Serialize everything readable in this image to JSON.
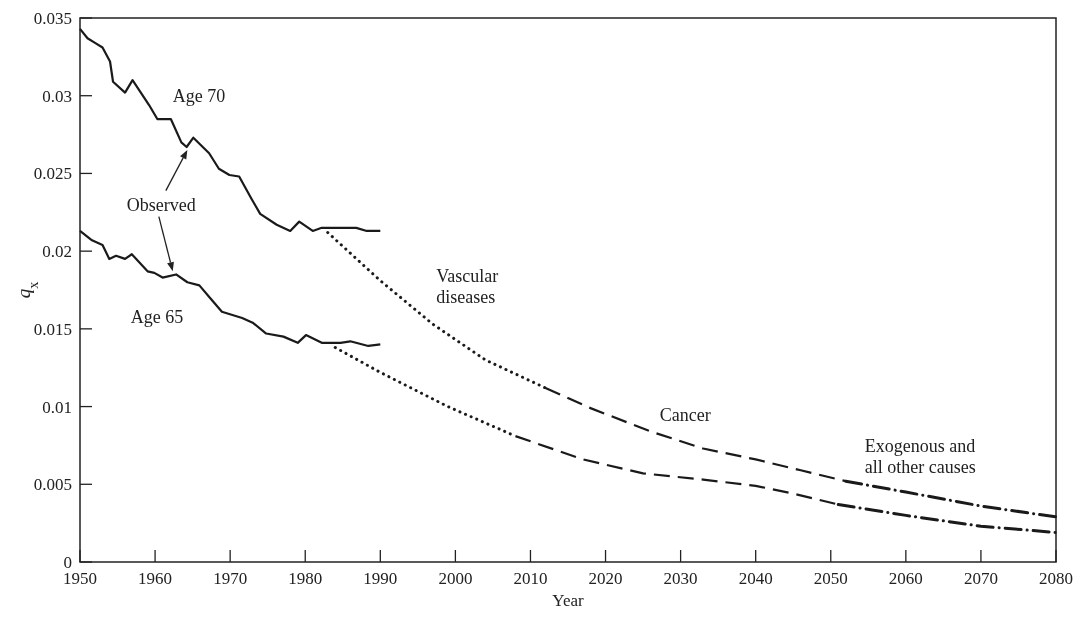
{
  "chart_data": {
    "type": "line",
    "xlabel": "Year",
    "ylabel": "q$_{x}$",
    "xlim": [
      1950,
      2080
    ],
    "xticks": [
      1950,
      1960,
      1970,
      1980,
      1990,
      2000,
      2010,
      2020,
      2030,
      2040,
      2050,
      2060,
      2070,
      2080
    ],
    "ylim": [
      0,
      0.035
    ],
    "yticks": [
      0,
      0.005,
      0.01,
      0.015,
      0.02,
      0.025,
      0.03,
      0.035
    ],
    "grid": false,
    "series": [
      {
        "color": "#1a1a1a",
        "line_style": "solid",
        "x": [
          1950,
          1951,
          1952,
          1953,
          1954,
          1954.4,
          1956,
          1957,
          1959.2,
          1960.3,
          1962.1,
          1963.5,
          1964.2,
          1965.1,
          1967.2,
          1968.5,
          1969.9,
          1971.2,
          1972.8,
          1974,
          1976.2,
          1978,
          1979.2,
          1981,
          1982.2,
          1986.8,
          1988.2,
          1990
        ],
        "values": [
          0.0343,
          0.0337,
          0.0334,
          0.0331,
          0.0322,
          0.0309,
          0.0302,
          0.031,
          0.0294,
          0.0285,
          0.0285,
          0.027,
          0.0267,
          0.0273,
          0.0263,
          0.0253,
          0.0249,
          0.0248,
          0.0234,
          0.0224,
          0.0217,
          0.0213,
          0.0219,
          0.0213,
          0.0215,
          0.0215,
          0.0213,
          0.0213
        ]
      },
      {
        "color": "#1a1a1a",
        "line_style": "solid",
        "x": [
          1950,
          1951.6,
          1953,
          1953.9,
          1954.8,
          1956,
          1956.9,
          1959,
          1959.9,
          1961,
          1962.8,
          1964.3,
          1965.9,
          1967.3,
          1968.9,
          1971.6,
          1973,
          1974.8,
          1977.1,
          1979,
          1980.1,
          1982.2,
          1984.7,
          1986,
          1988.4,
          1990
        ],
        "values": [
          0.0213,
          0.0207,
          0.0204,
          0.0195,
          0.0197,
          0.0195,
          0.0198,
          0.0187,
          0.0186,
          0.0183,
          0.0185,
          0.018,
          0.0178,
          0.017,
          0.0161,
          0.0157,
          0.0154,
          0.0147,
          0.0145,
          0.0141,
          0.0146,
          0.0141,
          0.0141,
          0.0142,
          0.0139,
          0.014
        ]
      },
      {
        "color": "#1a1a1a",
        "line_style": "dotted",
        "x": [
          1983,
          1990,
          1997,
          2004,
          2012
        ],
        "values": [
          0.0212,
          0.0181,
          0.0153,
          0.013,
          0.0112
        ]
      },
      {
        "color": "#1a1a1a",
        "line_style": "dashed",
        "x": [
          2012,
          2018,
          2026,
          2033,
          2040,
          2046,
          2052
        ],
        "values": [
          0.0112,
          0.0099,
          0.0084,
          0.0073,
          0.0066,
          0.0059,
          0.0052
        ]
      },
      {
        "color": "#1a1a1a",
        "line_style": "dashdot",
        "x": [
          2052,
          2060,
          2070,
          2080
        ],
        "values": [
          0.0052,
          0.0045,
          0.0036,
          0.0029
        ]
      },
      {
        "color": "#1a1a1a",
        "line_style": "dotted",
        "x": [
          1984,
          1990,
          1999,
          2008
        ],
        "values": [
          0.0138,
          0.0122,
          0.01,
          0.0081
        ]
      },
      {
        "color": "#1a1a1a",
        "line_style": "dashed",
        "x": [
          2008,
          2017,
          2025,
          2033,
          2040,
          2045,
          2051
        ],
        "values": [
          0.0081,
          0.0066,
          0.0057,
          0.0053,
          0.0049,
          0.0044,
          0.0037
        ]
      },
      {
        "color": "#1a1a1a",
        "line_style": "dashdot",
        "x": [
          2051,
          2060,
          2070,
          2080
        ],
        "values": [
          0.0037,
          0.003,
          0.0023,
          0.0019
        ]
      }
    ],
    "annotations": [
      "Age 70",
      "Age 65",
      "Observed",
      "Vascular diseases",
      "Cancer",
      "Exogenous and all other causes"
    ]
  }
}
